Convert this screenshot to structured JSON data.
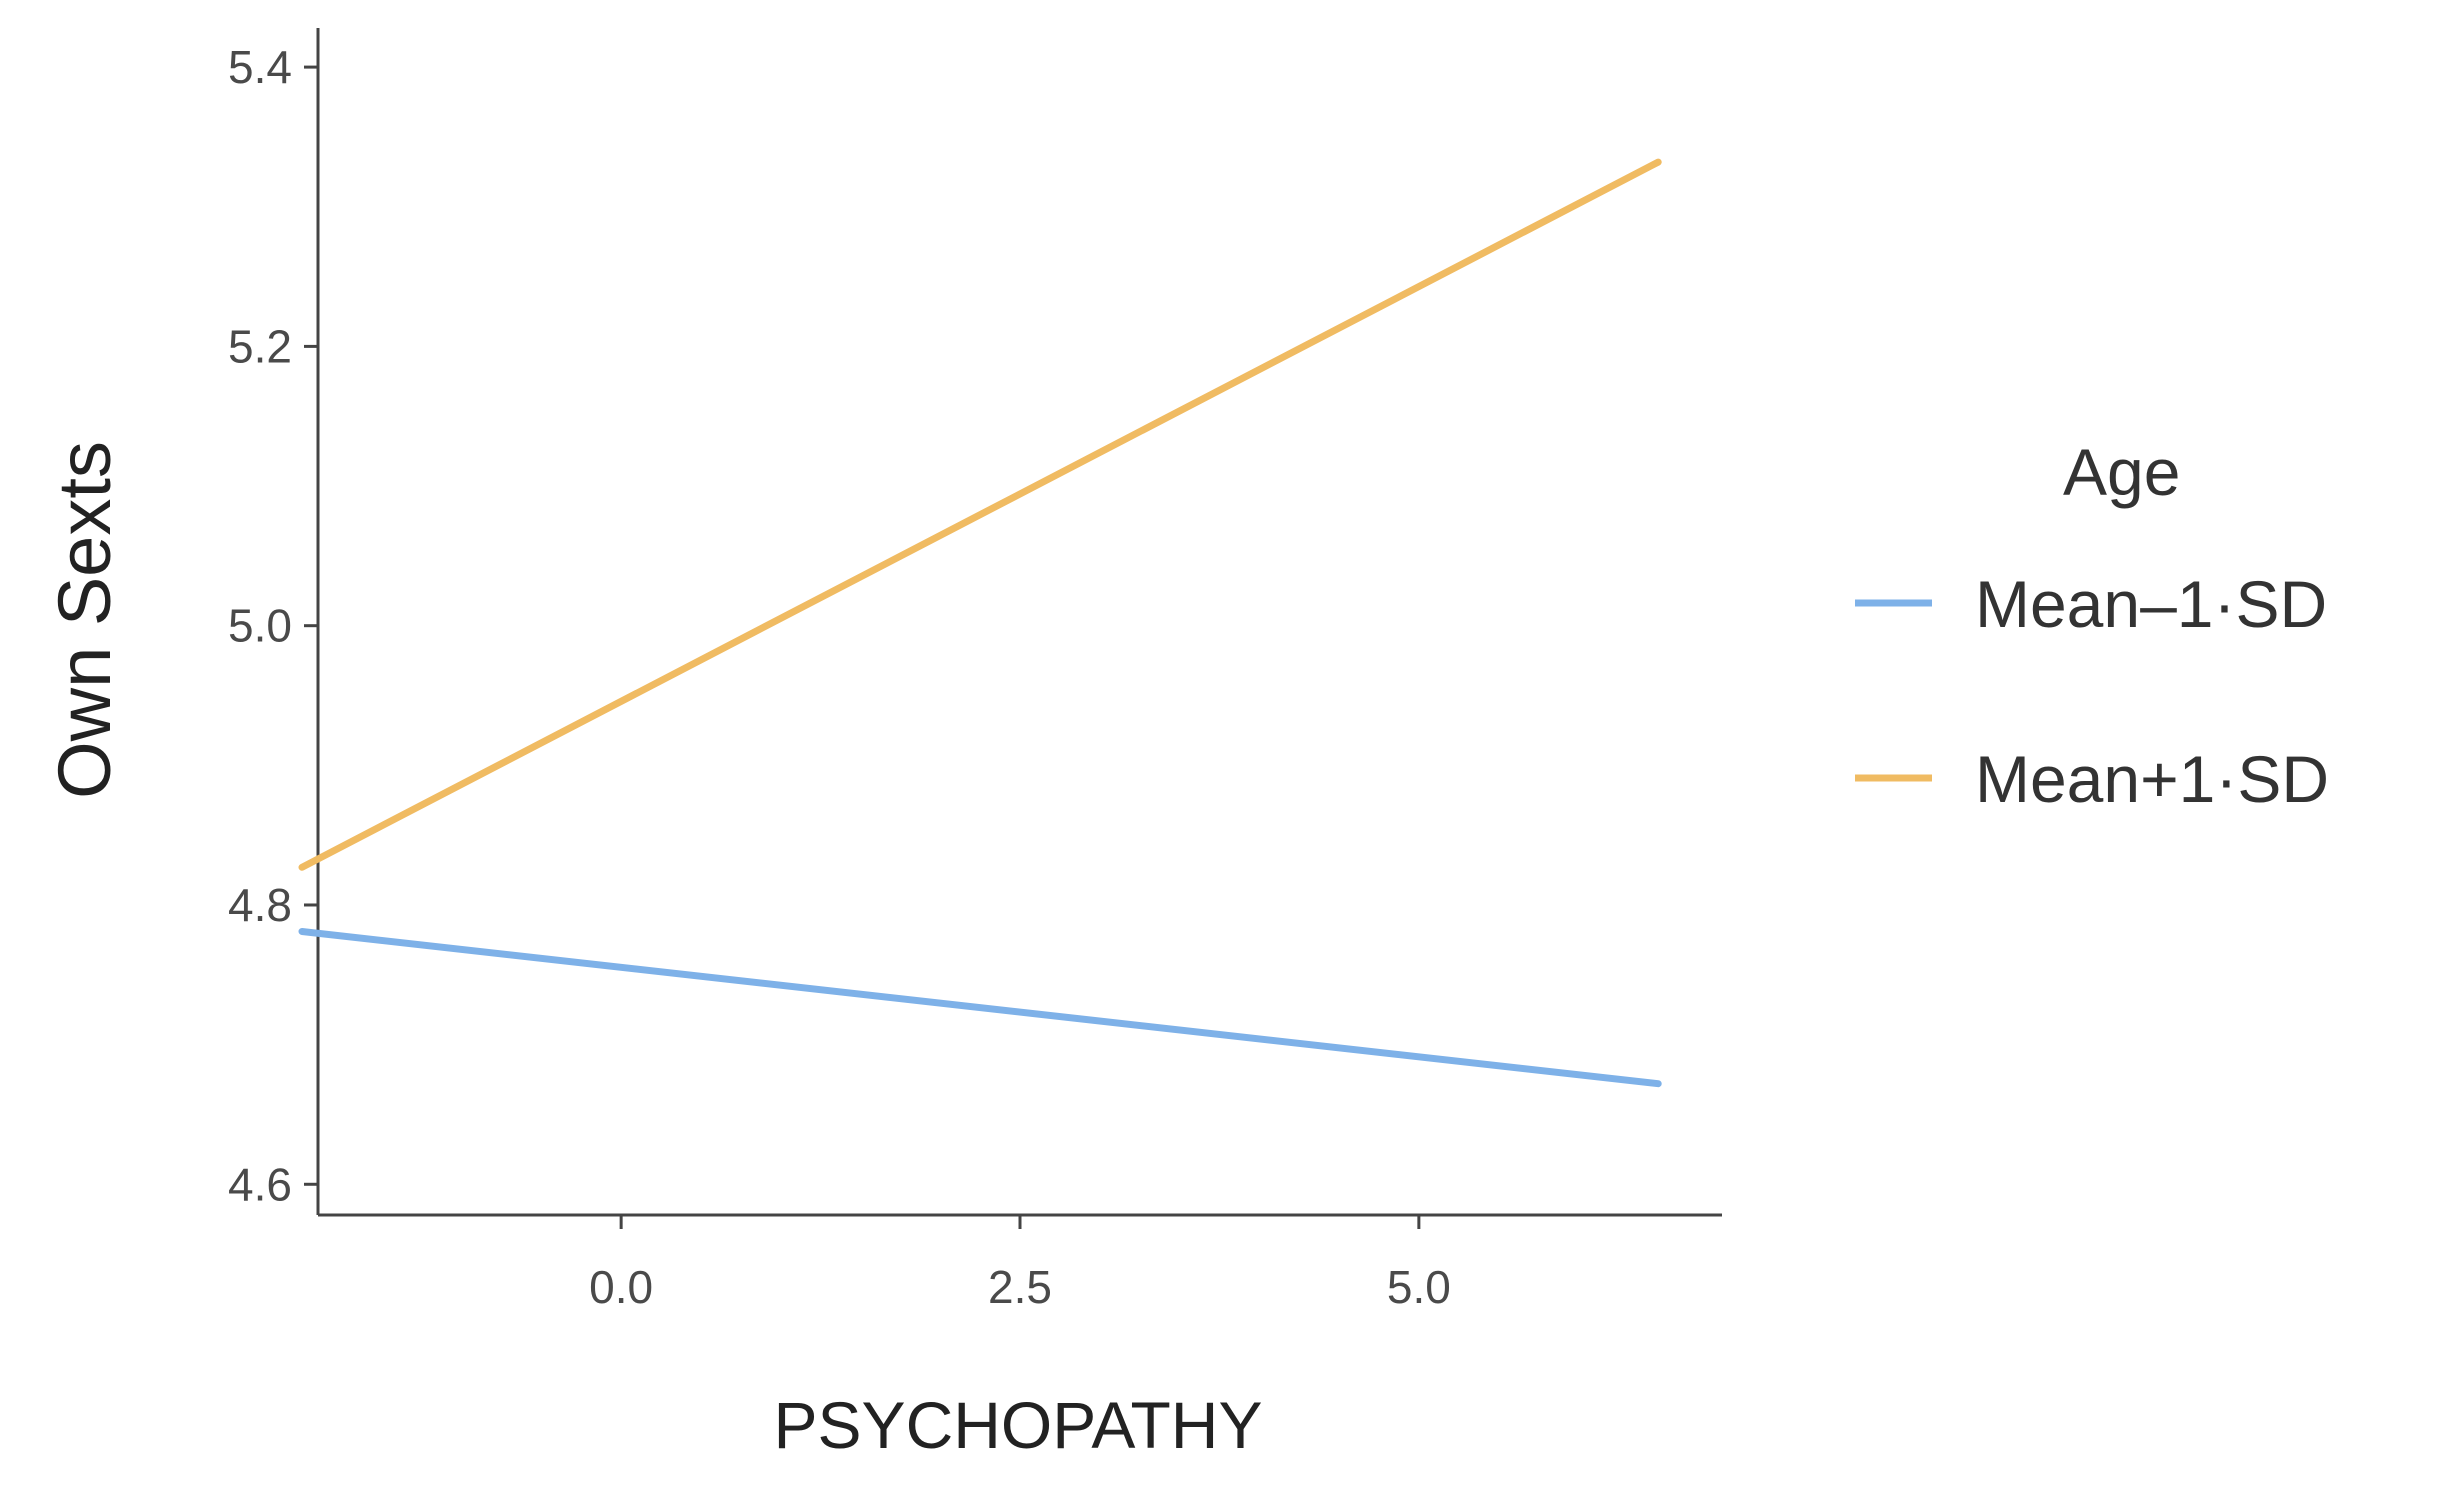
{
  "chart_data": {
    "type": "line",
    "title": "",
    "xlabel": "PSYCHOPATHY",
    "ylabel": "Own Sexts",
    "xlim": [
      -1.9,
      6.9
    ],
    "ylim": [
      4.578,
      5.428
    ],
    "xticks": [
      0.0,
      2.5,
      5.0
    ],
    "xtick_labels": [
      "0.0",
      "2.5",
      "5.0"
    ],
    "yticks": [
      4.6,
      4.8,
      5.0,
      5.2,
      5.4
    ],
    "ytick_labels": [
      "4.6",
      "4.8",
      "5.0",
      "5.2",
      "5.4"
    ],
    "grid": false,
    "legend_title": "Age",
    "legend_position": "right",
    "series": [
      {
        "name": "Mean–1·SD",
        "color": "#7eb1e8",
        "x": [
          -2.0,
          6.5
        ],
        "y": [
          4.781,
          4.672
        ]
      },
      {
        "name": "Mean+1·SD",
        "color": "#f0bb62",
        "x": [
          -2.0,
          6.5
        ],
        "y": [
          4.827,
          5.332
        ]
      }
    ]
  }
}
